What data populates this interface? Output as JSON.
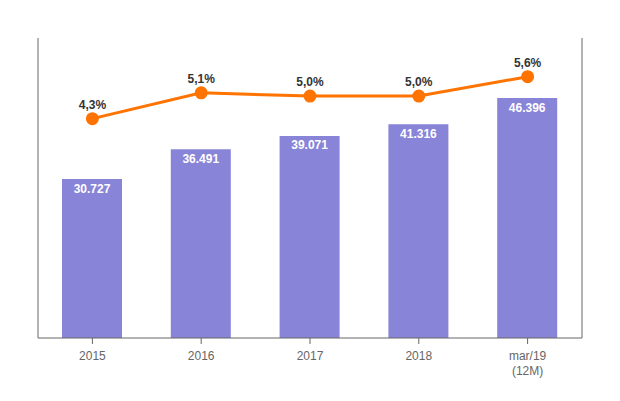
{
  "chart_data": {
    "type": "bar",
    "categories": [
      "2015",
      "2016",
      "2017",
      "2018",
      "mar/19\n(12M)"
    ],
    "series": [
      {
        "type": "bar",
        "values": [
          30727,
          36491,
          39071,
          41316,
          46396
        ],
        "value_labels": [
          "30.727",
          "36.491",
          "39.071",
          "41.316",
          "46.396"
        ]
      },
      {
        "type": "line",
        "axis": "y2",
        "marker": "circle",
        "values": [
          4.3,
          5.1,
          5.0,
          5.0,
          5.6
        ],
        "value_labels": [
          "4,3%",
          "5,1%",
          "5,0%",
          "5,0%",
          "5,6%"
        ]
      }
    ],
    "ylim": [
      0,
      58000
    ],
    "y2lim": [
      -2.5,
      6.8
    ],
    "tick_labels": "x",
    "data_labels": true,
    "grid": false
  }
}
